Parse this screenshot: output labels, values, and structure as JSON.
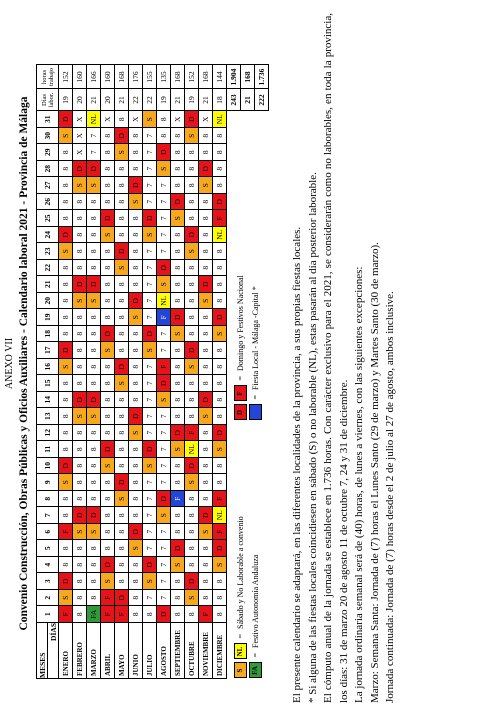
{
  "header": {
    "annex": "ANEXO VII",
    "title": "Convenio Construcción, Obras Públicas y Oficios Auxiliares - Calendario laboral 2021 - Provincia de Málaga"
  },
  "table": {
    "month_header": "MESES",
    "day_header": "DÍAS",
    "days": [
      1,
      2,
      3,
      4,
      5,
      6,
      7,
      8,
      9,
      10,
      11,
      12,
      13,
      14,
      15,
      16,
      17,
      18,
      19,
      20,
      21,
      22,
      23,
      24,
      25,
      26,
      27,
      28,
      29,
      30,
      31
    ],
    "labor_header": "Días labor.",
    "hours_header": "horas trabajo",
    "code_colors": {
      "S": "#f6a81f",
      "NL": "#ffff00",
      "D": "#e5141b",
      "F": "#e5141b",
      "FA": "#2d9b3a"
    },
    "local_color": "#2446d8",
    "rows": [
      {
        "month": "ENERO",
        "cells": [
          "F",
          "S",
          "D",
          "8",
          "8",
          "F",
          "8",
          "8",
          "S",
          "D",
          "8",
          "8",
          "8",
          "8",
          "8",
          "S",
          "D",
          "8",
          "8",
          "8",
          "8",
          "8",
          "S",
          "D",
          "8",
          "8",
          "8",
          "8",
          "8",
          "S",
          "D"
        ],
        "days": "19",
        "hours": "152"
      },
      {
        "month": "FEBRERO",
        "cells": [
          "8",
          "8",
          "8",
          "8",
          "8",
          "S",
          "D",
          "8",
          "8",
          "8",
          "8",
          "8",
          "S",
          "D",
          "8",
          "8",
          "8",
          "8",
          "8",
          "S",
          "D",
          "8",
          "8",
          "8",
          "8",
          "8",
          "S",
          "D",
          "X",
          "X",
          "X"
        ],
        "days": "20",
        "hours": "160"
      },
      {
        "month": "MARZO",
        "cells": [
          "FA",
          "8",
          "8",
          "8",
          "8",
          "S",
          "D",
          "8",
          "8",
          "8",
          "8",
          "8",
          "S",
          "D",
          "8",
          "8",
          "8",
          "8",
          "8",
          "S",
          "D",
          "8",
          "8",
          "8",
          "8",
          "8",
          "S",
          "D",
          "7",
          "7",
          "NL"
        ],
        "days": "21",
        "hours": "166"
      },
      {
        "month": "ABRIL",
        "cells": [
          "F",
          "F",
          "S",
          "D",
          "8",
          "8",
          "8",
          "8",
          "8",
          "S",
          "D",
          "8",
          "8",
          "8",
          "8",
          "8",
          "S",
          "D",
          "8",
          "8",
          "8",
          "8",
          "8",
          "S",
          "D",
          "8",
          "8",
          "8",
          "8",
          "8",
          "X"
        ],
        "days": "20",
        "hours": "160"
      },
      {
        "month": "MAYO",
        "cells": [
          "F",
          "D",
          "8",
          "8",
          "8",
          "8",
          "8",
          "S",
          "D",
          "8",
          "8",
          "8",
          "8",
          "8",
          "S",
          "D",
          "8",
          "8",
          "8",
          "8",
          "8",
          "S",
          "D",
          "8",
          "8",
          "8",
          "8",
          "8",
          "S",
          "D",
          "8"
        ],
        "days": "21",
        "hours": "168"
      },
      {
        "month": "JUNIO",
        "cells": [
          "8",
          "8",
          "8",
          "8",
          "S",
          "D",
          "8",
          "8",
          "8",
          "8",
          "8",
          "S",
          "D",
          "8",
          "8",
          "8",
          "8",
          "8",
          "S",
          "D",
          "8",
          "8",
          "8",
          "8",
          "8",
          "S",
          "D",
          "8",
          "8",
          "8",
          "X"
        ],
        "days": "22",
        "hours": "176"
      },
      {
        "month": "JULIO",
        "cells": [
          "8",
          "7",
          "S",
          "D",
          "7",
          "7",
          "7",
          "7",
          "7",
          "S",
          "D",
          "7",
          "7",
          "7",
          "7",
          "7",
          "S",
          "D",
          "7",
          "7",
          "7",
          "7",
          "7",
          "S",
          "D",
          "7",
          "7",
          "7",
          "7",
          "7",
          "S"
        ],
        "days": "22",
        "hours": "155"
      },
      {
        "month": "AGOSTO",
        "cells": [
          "D",
          "7",
          "7",
          "7",
          "7",
          "7",
          "S",
          "D",
          "7",
          "7",
          "7",
          "7",
          "7",
          "S",
          "D",
          "F",
          "7",
          "7",
          {
            "label": "F",
            "local": true
          },
          "NL",
          "S",
          "D",
          "7",
          "7",
          "7",
          "7",
          "7",
          "S",
          "D",
          "8",
          "8"
        ],
        "days": "19",
        "hours": "135"
      },
      {
        "month": "SEPTIEMBRE",
        "cells": [
          "8",
          "8",
          "8",
          "S",
          "D",
          "8",
          "8",
          {
            "label": "F",
            "local": true
          },
          "8",
          "8",
          "S",
          "D",
          "8",
          "8",
          "8",
          "8",
          "8",
          "S",
          "D",
          "8",
          "8",
          "8",
          "8",
          "8",
          "S",
          "D",
          "8",
          "8",
          "8",
          "8",
          "X"
        ],
        "days": "21",
        "hours": "168"
      },
      {
        "month": "OCTUBRE",
        "cells": [
          "8",
          "S",
          "D",
          "8",
          "8",
          "8",
          "8",
          "8",
          "S",
          "D",
          "NL",
          "F",
          "8",
          "8",
          "8",
          "S",
          "D",
          "8",
          "8",
          "8",
          "8",
          "8",
          "S",
          "D",
          "8",
          "8",
          "8",
          "8",
          "8",
          "S",
          "D"
        ],
        "days": "19",
        "hours": "152"
      },
      {
        "month": "NOVIEMBRE",
        "cells": [
          "F",
          "8",
          "8",
          "8",
          "8",
          "S",
          "D",
          "8",
          "8",
          "8",
          "8",
          "8",
          "S",
          "D",
          "8",
          "8",
          "8",
          "8",
          "8",
          "S",
          "D",
          "8",
          "8",
          "8",
          "8",
          "8",
          "S",
          "D",
          "8",
          "8",
          "X"
        ],
        "days": "21",
        "hours": "168"
      },
      {
        "month": "DICIEMBRE",
        "cells": [
          "8",
          "8",
          "8",
          "S",
          "D",
          "F",
          "NL",
          "F",
          "8",
          "8",
          "S",
          "D",
          "8",
          "8",
          "8",
          "8",
          "8",
          "S",
          "D",
          "8",
          "8",
          "8",
          "8",
          "NL",
          "F",
          "D",
          "8",
          "8",
          "8",
          "8",
          "NL"
        ],
        "days": "18",
        "hours": "144"
      }
    ],
    "totals": [
      [
        "243",
        "1.904"
      ],
      [
        "21",
        "168"
      ],
      [
        "222",
        "1.736"
      ]
    ]
  },
  "legend": [
    {
      "codes": [
        "S",
        "NL"
      ],
      "text": "Sábado y No Laborable a convenio"
    },
    {
      "codes": [
        "D",
        "F"
      ],
      "text": "Domingo y Festivos Nacional"
    },
    {
      "codes": [
        "FA"
      ],
      "text": "Festivo Autonomía Andaluza"
    },
    {
      "codes": [],
      "local": true,
      "text": "Fiesta Local - Málaga -Capital *"
    }
  ],
  "notes": [
    "El presente calendario se adaptará, en las diferentes localidades de la provincia, a sus propias fiestas locales.",
    "* Si alguna de las fiestas locales coincidiesen en sábado (S) o no laborable (NL), estas pasarán al día posterior laborable.",
    "El cómputo anual de la jornada se establece en 1.736 horas. Con carácter exclusivo para el 2021, se considerarán como no laborables, en toda la provincia, los días: 31 de marzo 20 de agosto 11 de octubre 7, 24 y 31 de diciembre.",
    "La jornada ordinaria semanal será de (40) horas, de lunes a viernes, con las siguientes excepciones:",
    "Marzo: Semana Santa: Jornada de (7) horas el Lunes Santo (29 de marzo) y Martes Santo (30 de marzo).",
    "Jornada continuada: Jornada de (7) horas desde el 2 de julio al 27 de agosto, ambos inclusive."
  ]
}
